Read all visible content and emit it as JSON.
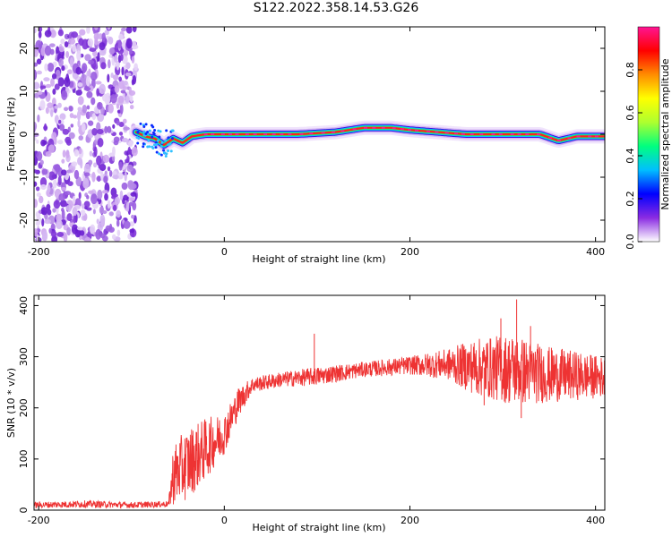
{
  "title": "S122.2022.358.14.53.G26",
  "chart_data": [
    {
      "type": "heatmap",
      "xlabel": "Height of straight line (km)",
      "ylabel": "Frequency (Hz)",
      "xlim": [
        -205,
        410
      ],
      "ylim": [
        -25,
        25
      ],
      "xticks": [
        -200,
        0,
        200,
        400
      ],
      "yticks": [
        -20,
        -10,
        0,
        10,
        20
      ],
      "colorbar": {
        "label": "Normalized spectral amplitude",
        "range": [
          0,
          1
        ],
        "ticks": [
          0.0,
          0.2,
          0.4,
          0.6,
          0.8
        ],
        "colormap": [
          "#ffffff",
          "#8a2be2",
          "#0000ff",
          "#00bfff",
          "#00ff7f",
          "#adff2f",
          "#ffff00",
          "#ff8c00",
          "#ff0000",
          "#ff1493"
        ]
      },
      "noise_region_x": [
        -205,
        -95
      ],
      "ridge": [
        {
          "x": -95,
          "f": 0.5
        },
        {
          "x": -85,
          "f": -0.5
        },
        {
          "x": -75,
          "f": -1.0
        },
        {
          "x": -65,
          "f": -2.5
        },
        {
          "x": -55,
          "f": -1.0
        },
        {
          "x": -45,
          "f": -2.0
        },
        {
          "x": -35,
          "f": -0.5
        },
        {
          "x": -20,
          "f": 0.0
        },
        {
          "x": 0,
          "f": 0.0
        },
        {
          "x": 40,
          "f": 0.0
        },
        {
          "x": 80,
          "f": 0.0
        },
        {
          "x": 120,
          "f": 0.5
        },
        {
          "x": 150,
          "f": 1.5
        },
        {
          "x": 180,
          "f": 1.5
        },
        {
          "x": 200,
          "f": 1.0
        },
        {
          "x": 230,
          "f": 0.5
        },
        {
          "x": 260,
          "f": 0.0
        },
        {
          "x": 300,
          "f": 0.0
        },
        {
          "x": 340,
          "f": 0.0
        },
        {
          "x": 360,
          "f": -1.5
        },
        {
          "x": 380,
          "f": -0.5
        },
        {
          "x": 410,
          "f": -0.5
        }
      ]
    },
    {
      "type": "line",
      "xlabel": "Height of straight line (km)",
      "ylabel": "SNR (10 * v/v)",
      "xlim": [
        -205,
        410
      ],
      "ylim": [
        0,
        420
      ],
      "xticks": [
        -200,
        0,
        200,
        400
      ],
      "yticks": [
        0,
        100,
        200,
        300,
        400
      ],
      "color": "#ee3333",
      "trend": [
        {
          "x": -205,
          "y": 10,
          "noise": 6
        },
        {
          "x": -150,
          "y": 12,
          "noise": 7
        },
        {
          "x": -100,
          "y": 10,
          "noise": 6
        },
        {
          "x": -60,
          "y": 12,
          "noise": 6
        },
        {
          "x": -55,
          "y": 70,
          "noise": 60
        },
        {
          "x": -40,
          "y": 90,
          "noise": 70
        },
        {
          "x": -20,
          "y": 120,
          "noise": 60
        },
        {
          "x": 0,
          "y": 150,
          "noise": 40
        },
        {
          "x": 15,
          "y": 210,
          "noise": 30
        },
        {
          "x": 30,
          "y": 245,
          "noise": 15
        },
        {
          "x": 60,
          "y": 255,
          "noise": 15
        },
        {
          "x": 100,
          "y": 262,
          "noise": 18
        },
        {
          "x": 150,
          "y": 275,
          "noise": 15
        },
        {
          "x": 200,
          "y": 283,
          "noise": 18
        },
        {
          "x": 240,
          "y": 285,
          "noise": 30
        },
        {
          "x": 270,
          "y": 280,
          "noise": 55
        },
        {
          "x": 310,
          "y": 275,
          "noise": 70
        },
        {
          "x": 350,
          "y": 265,
          "noise": 55
        },
        {
          "x": 410,
          "y": 260,
          "noise": 40
        }
      ],
      "spikes": [
        {
          "x": 97,
          "y": 345
        },
        {
          "x": 315,
          "y": 412
        },
        {
          "x": 298,
          "y": 375
        },
        {
          "x": 330,
          "y": 360
        },
        {
          "x": 280,
          "y": 205
        },
        {
          "x": 320,
          "y": 180
        }
      ]
    }
  ]
}
